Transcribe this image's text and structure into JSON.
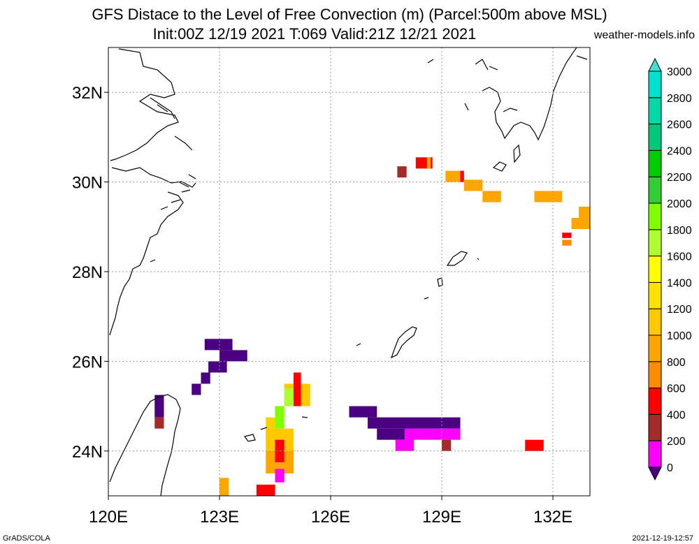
{
  "title": {
    "line1": "GFS Distace to the Level of Free Convection (m) (Parcel:500m above MSL)",
    "line2": "Init:00Z 12/19 2021 T:069 Valid:21Z 12/21 2021",
    "source": "weather-models.info"
  },
  "footer": {
    "left": "GrADS/COLA",
    "right": "2021-12-19-12:57"
  },
  "axes": {
    "lon_min": 120,
    "lon_max": 133,
    "lat_min": 23,
    "lat_max": 33,
    "x_ticks": [
      120,
      123,
      126,
      129,
      132
    ],
    "x_tick_labels": [
      "120E",
      "123E",
      "126E",
      "129E",
      "132E"
    ],
    "y_ticks": [
      24,
      26,
      28,
      30,
      32
    ],
    "y_tick_labels": [
      "24N",
      "26N",
      "28N",
      "30N",
      "32N"
    ],
    "grid": true
  },
  "colorbar": {
    "levels": [
      0,
      200,
      400,
      600,
      800,
      1000,
      1200,
      1400,
      1600,
      1800,
      2000,
      2200,
      2400,
      2600,
      2800,
      3000
    ],
    "labels": [
      "0",
      "200",
      "400",
      "600",
      "800",
      "1000",
      "1200",
      "1400",
      "1600",
      "1800",
      "2000",
      "2200",
      "2400",
      "2600",
      "2800",
      "3000"
    ],
    "colors": [
      "#4b0082",
      "#ff00ff",
      "#a52a2a",
      "#ff0000",
      "#ff8c00",
      "#ffa500",
      "#ffc800",
      "#ffe000",
      "#ffff00",
      "#adff2f",
      "#7fff00",
      "#32cd32",
      "#00cd00",
      "#00c878",
      "#00d8a8",
      "#00e0d0",
      "#40e0d0"
    ]
  },
  "field_cells": [
    {
      "lon": 127.8,
      "lat": 30.1,
      "w": 0.25,
      "h": 0.25,
      "c": "#a52a2a"
    },
    {
      "lon": 128.3,
      "lat": 30.3,
      "w": 0.45,
      "h": 0.25,
      "c": "#ff0000"
    },
    {
      "lon": 128.6,
      "lat": 30.3,
      "w": 0.1,
      "h": 0.25,
      "c": "#ffa500"
    },
    {
      "lon": 129.1,
      "lat": 30.0,
      "w": 0.45,
      "h": 0.25,
      "c": "#ffa500"
    },
    {
      "lon": 129.5,
      "lat": 30.0,
      "w": 0.1,
      "h": 0.25,
      "c": "#ff0000"
    },
    {
      "lon": 129.6,
      "lat": 29.8,
      "w": 0.5,
      "h": 0.25,
      "c": "#ffa500"
    },
    {
      "lon": 130.1,
      "lat": 29.55,
      "w": 0.5,
      "h": 0.25,
      "c": "#ffa500"
    },
    {
      "lon": 131.5,
      "lat": 29.55,
      "w": 0.75,
      "h": 0.25,
      "c": "#ffa500"
    },
    {
      "lon": 132.7,
      "lat": 29.2,
      "w": 0.3,
      "h": 0.25,
      "c": "#ffa500"
    },
    {
      "lon": 132.5,
      "lat": 28.95,
      "w": 0.5,
      "h": 0.25,
      "c": "#ffa500"
    },
    {
      "lon": 132.25,
      "lat": 28.75,
      "w": 0.25,
      "h": 0.12,
      "c": "#ff0000"
    },
    {
      "lon": 132.25,
      "lat": 28.58,
      "w": 0.25,
      "h": 0.13,
      "c": "#ff8c00"
    },
    {
      "lon": 122.6,
      "lat": 26.25,
      "w": 0.75,
      "h": 0.25,
      "c": "#4b0082"
    },
    {
      "lon": 123.0,
      "lat": 26.0,
      "w": 0.75,
      "h": 0.25,
      "c": "#4b0082"
    },
    {
      "lon": 122.7,
      "lat": 25.75,
      "w": 0.5,
      "h": 0.25,
      "c": "#4b0082"
    },
    {
      "lon": 122.5,
      "lat": 25.5,
      "w": 0.25,
      "h": 0.25,
      "c": "#4b0082"
    },
    {
      "lon": 122.25,
      "lat": 25.25,
      "w": 0.25,
      "h": 0.25,
      "c": "#4b0082"
    },
    {
      "lon": 121.25,
      "lat": 24.75,
      "w": 0.25,
      "h": 0.5,
      "c": "#4b0082"
    },
    {
      "lon": 121.25,
      "lat": 24.5,
      "w": 0.25,
      "h": 0.25,
      "c": "#a52a2a"
    },
    {
      "lon": 126.5,
      "lat": 24.75,
      "w": 0.75,
      "h": 0.25,
      "c": "#4b0082"
    },
    {
      "lon": 127.0,
      "lat": 24.5,
      "w": 2.5,
      "h": 0.25,
      "c": "#4b0082"
    },
    {
      "lon": 127.25,
      "lat": 24.25,
      "w": 1.0,
      "h": 0.25,
      "c": "#4b0082"
    },
    {
      "lon": 128.0,
      "lat": 24.25,
      "w": 1.5,
      "h": 0.25,
      "c": "#ff00ff"
    },
    {
      "lon": 127.75,
      "lat": 24.0,
      "w": 0.5,
      "h": 0.25,
      "c": "#ff00ff"
    },
    {
      "lon": 129.0,
      "lat": 24.0,
      "w": 0.25,
      "h": 0.25,
      "c": "#a52a2a"
    },
    {
      "lon": 131.25,
      "lat": 24.0,
      "w": 0.5,
      "h": 0.25,
      "c": "#ff0000"
    },
    {
      "lon": 124.75,
      "lat": 25.0,
      "w": 0.7,
      "h": 0.5,
      "c": "#ffc800"
    },
    {
      "lon": 124.75,
      "lat": 25.0,
      "w": 0.4,
      "h": 0.4,
      "c": "#adff2f"
    },
    {
      "lon": 125.0,
      "lat": 25.0,
      "w": 0.2,
      "h": 0.75,
      "c": "#ff0000"
    },
    {
      "lon": 124.5,
      "lat": 24.5,
      "w": 0.25,
      "h": 0.5,
      "c": "#7fff00"
    },
    {
      "lon": 124.25,
      "lat": 24.25,
      "w": 0.25,
      "h": 0.5,
      "c": "#ffd000"
    },
    {
      "lon": 124.25,
      "lat": 24.0,
      "w": 0.75,
      "h": 0.5,
      "c": "#ffc800"
    },
    {
      "lon": 124.25,
      "lat": 23.5,
      "w": 0.75,
      "h": 0.5,
      "c": "#ffa500"
    },
    {
      "lon": 124.5,
      "lat": 23.75,
      "w": 0.25,
      "h": 0.5,
      "c": "#ff0000"
    },
    {
      "lon": 124.5,
      "lat": 23.3,
      "w": 0.25,
      "h": 0.3,
      "c": "#ff00ff"
    },
    {
      "lon": 124.0,
      "lat": 23.0,
      "w": 0.5,
      "h": 0.25,
      "c": "#ff0000"
    },
    {
      "lon": 123.0,
      "lat": 23.0,
      "w": 0.25,
      "h": 0.25,
      "c": "#ffa500"
    },
    {
      "lon": 123.0,
      "lat": 23.2,
      "w": 0.25,
      "h": 0.2,
      "c": "#ffa500"
    }
  ]
}
